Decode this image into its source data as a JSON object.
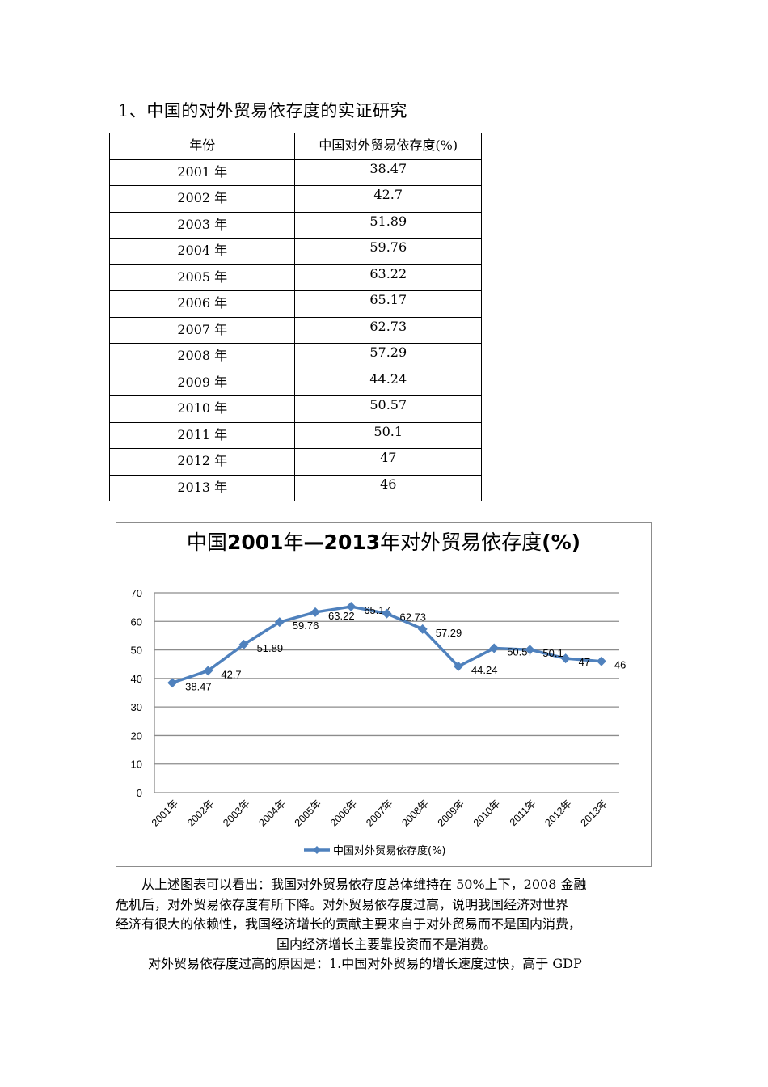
{
  "heading": "1、中国的对外贸易依存度的实证研究",
  "table": {
    "headers": [
      "年份",
      "中国对外贸易依存度(%)"
    ],
    "rows": [
      {
        "year": "2001 年",
        "value": "38.47"
      },
      {
        "year": "2002 年",
        "value": "42.7"
      },
      {
        "year": "2003 年",
        "value": "51.89"
      },
      {
        "year": "2004 年",
        "value": "59.76"
      },
      {
        "year": "2005 年",
        "value": "63.22"
      },
      {
        "year": "2006 年",
        "value": "65.17"
      },
      {
        "year": "2007 年",
        "value": "62.73"
      },
      {
        "year": "2008 年",
        "value": "57.29"
      },
      {
        "year": "2009 年",
        "value": "44.24"
      },
      {
        "year": "2010 年",
        "value": "50.57"
      },
      {
        "year": "2011 年",
        "value": "50.1"
      },
      {
        "year": "2012 年",
        "value": "47"
      },
      {
        "year": "2013 年",
        "value": "46"
      }
    ]
  },
  "chart": {
    "title_parts": [
      {
        "text": "中国",
        "bold": false
      },
      {
        "text": "2001",
        "bold": true
      },
      {
        "text": "年",
        "bold": false
      },
      {
        "text": "—2013",
        "bold": true
      },
      {
        "text": "年对外贸易依存度",
        "bold": false
      },
      {
        "text": "(%)",
        "bold": true
      }
    ],
    "line_color": "#4F81BD",
    "gridline_color": "#8c8c8c",
    "legend_label": "中国对外贸易依存度(%)"
  },
  "chart_data": {
    "type": "line",
    "title": "中国2001年—2013年对外贸易依存度(%)",
    "xlabel": "",
    "ylabel": "",
    "categories": [
      "2001年",
      "2002年",
      "2003年",
      "2004年",
      "2005年",
      "2006年",
      "2007年",
      "2008年",
      "2009年",
      "2010年",
      "2011年",
      "2012年",
      "2013年"
    ],
    "series": [
      {
        "name": "中国对外贸易依存度(%)",
        "values": [
          38.47,
          42.7,
          51.89,
          59.76,
          63.22,
          65.17,
          62.73,
          57.29,
          44.24,
          50.57,
          50.1,
          47,
          46
        ],
        "marker": "diamond",
        "data_labels": true
      }
    ],
    "ylim": [
      0,
      70
    ],
    "yticks": [
      0,
      10,
      20,
      30,
      40,
      50,
      60,
      70
    ],
    "grid": true,
    "legend_position": "bottom"
  },
  "paragraphs": {
    "p1_lines": [
      "从上述图表可以看出：我国对外贸易依存度总体维持在 50%上下，2008 金融",
      "危机后，对外贸易依存度有所下降。对外贸易依存度过高，说明我国经济对世界",
      "经济有很大的依赖性，我国经济增长的贡献主要来自于对外贸易而不是国内消费，",
      "国内经济增长主要靠投资而不是消费。"
    ],
    "p2": "对外贸易依存度过高的原因是：1.中国对外贸易的增长速度过快，高于 GDP"
  }
}
